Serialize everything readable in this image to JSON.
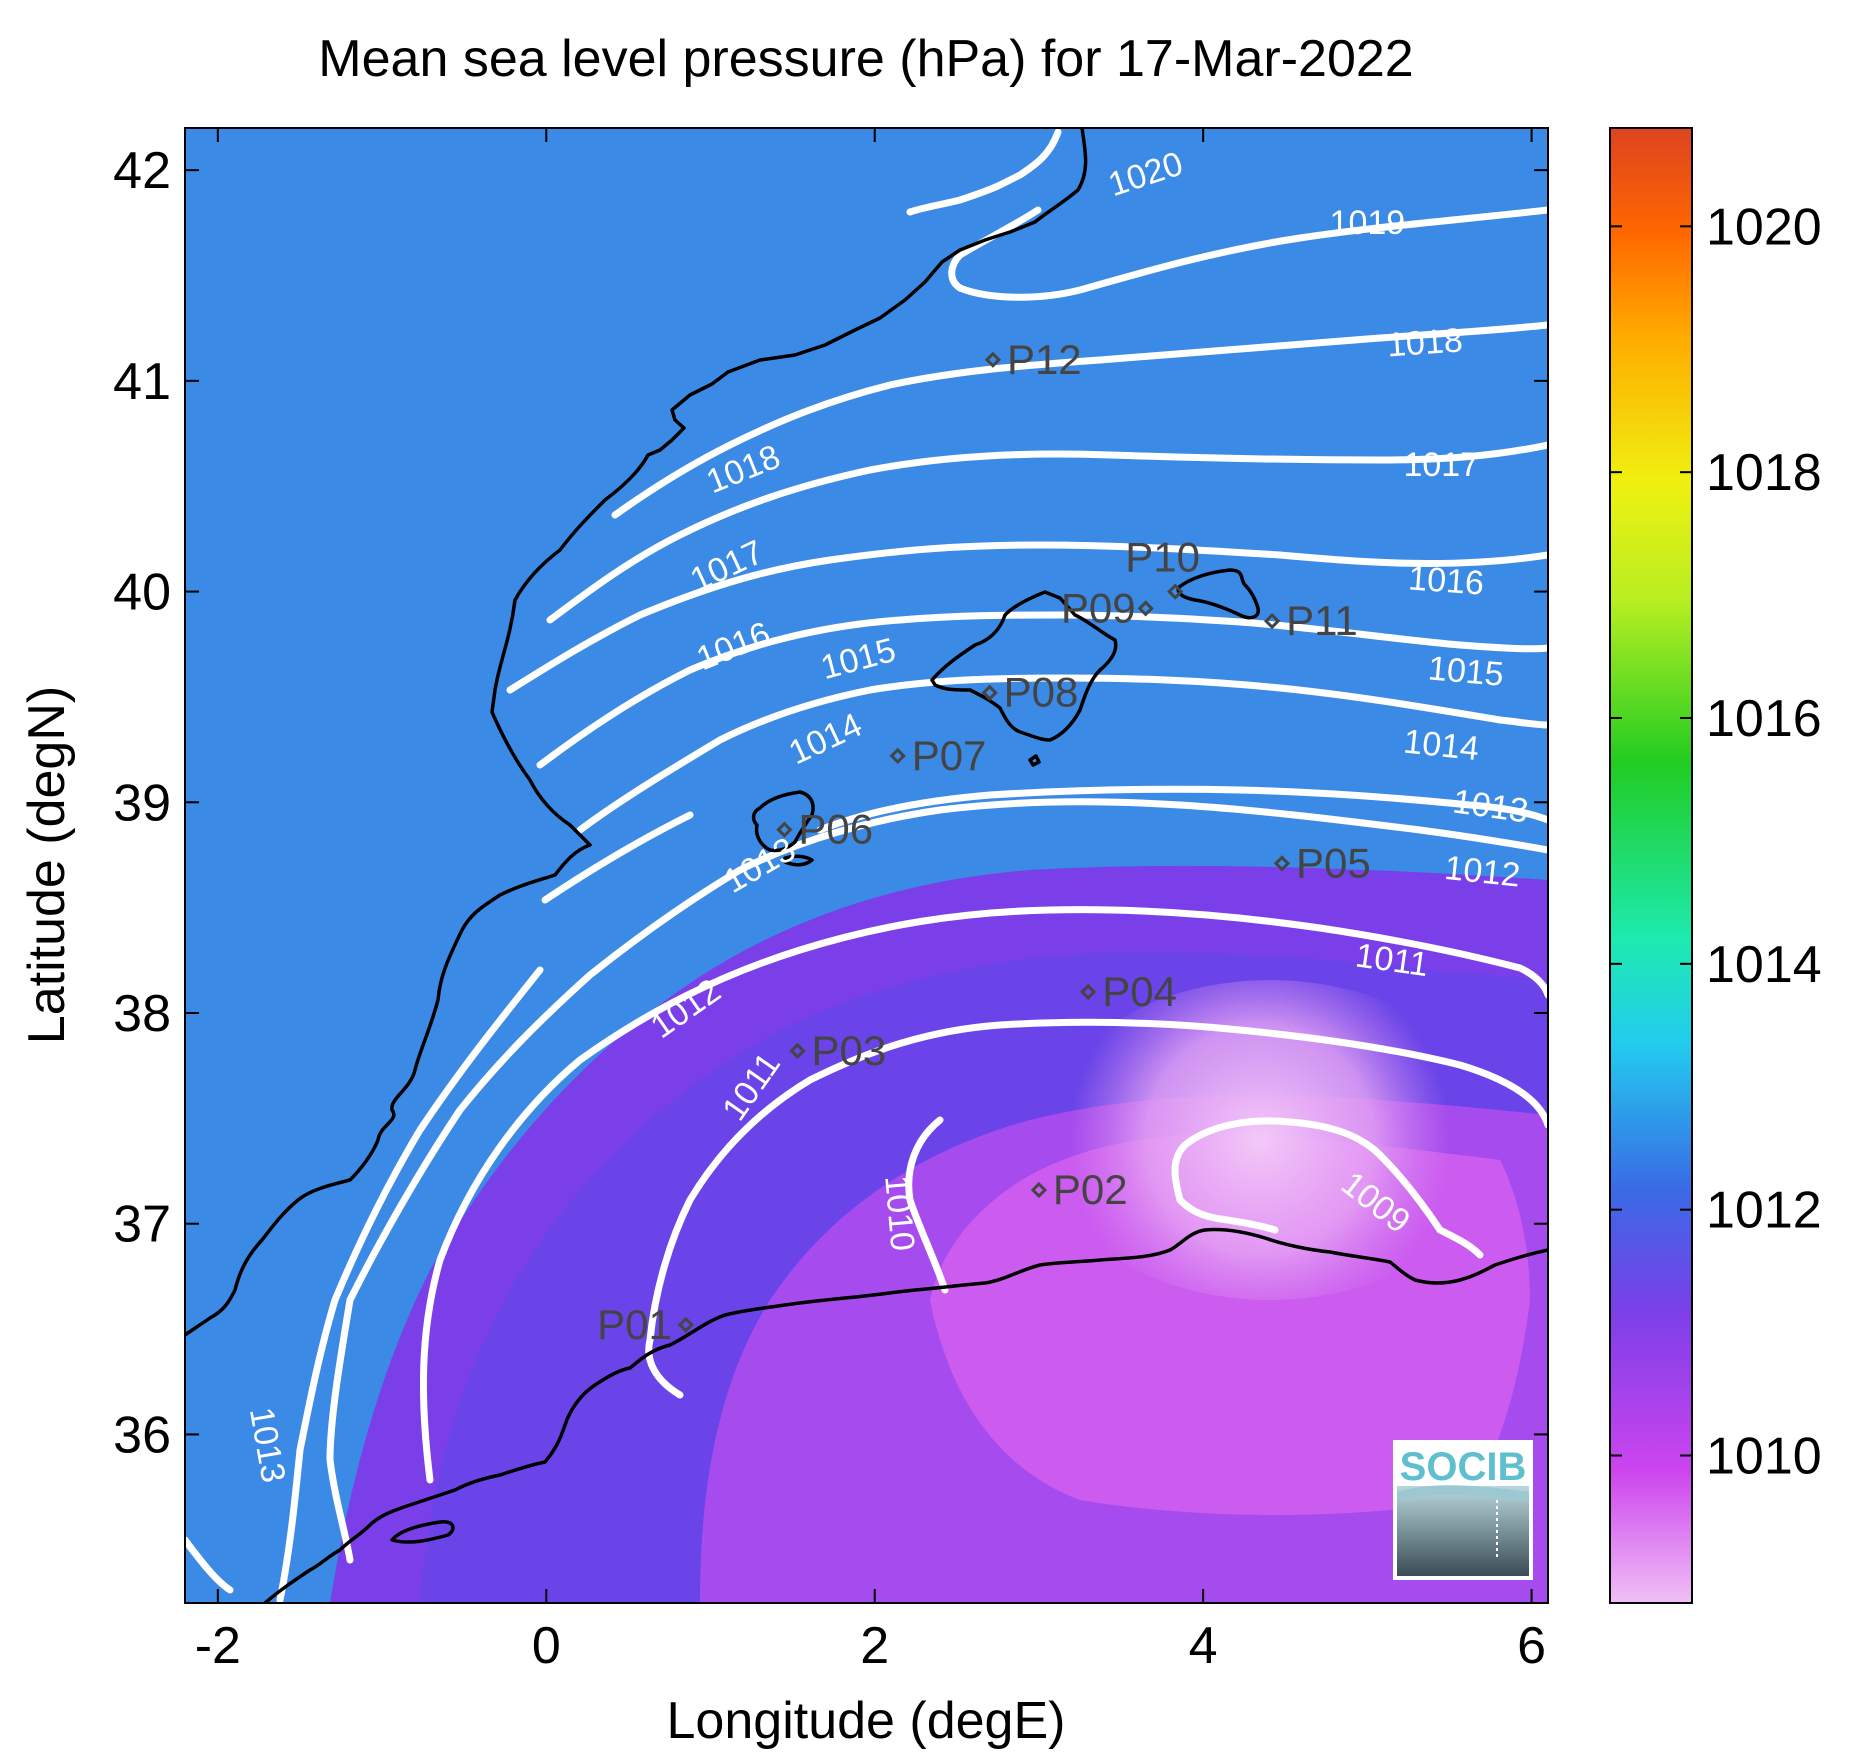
{
  "title": "Mean sea level pressure (hPa) for 17-Mar-2022",
  "xlabel": "Longitude (degE)",
  "ylabel": "Latitude (degN)",
  "logo_text": "SOCIB",
  "colors": {
    "contour": "#ffffff",
    "coast": "#000000",
    "station": "#444444",
    "logo": "#5fbfcf"
  },
  "chart_data": {
    "type": "heatmap",
    "title": "Mean sea level pressure (hPa) for 17-Mar-2022",
    "xlabel": "Longitude (degE)",
    "ylabel": "Latitude (degN)",
    "xlim": [
      -2.2,
      6.1
    ],
    "ylim": [
      35.2,
      42.2
    ],
    "xticks": [
      -2,
      0,
      2,
      4,
      6
    ],
    "yticks": [
      36,
      37,
      38,
      39,
      40,
      41,
      42
    ],
    "colorbar": {
      "range": [
        1008.8,
        1020.8
      ],
      "ticks": [
        1010,
        1012,
        1014,
        1016,
        1018,
        1020
      ],
      "colormap": [
        "#f0c0f5",
        "#cc44ee",
        "#7a3fe8",
        "#3a6ae6",
        "#22ccee",
        "#1deab0",
        "#22cc22",
        "#b8ee22",
        "#f0f010",
        "#ffaa00",
        "#ff6600",
        "#dd4422"
      ]
    },
    "contour_labels": [
      {
        "value": "1020",
        "lon": 3.65,
        "lat": 41.98,
        "angle": -18
      },
      {
        "value": "1019",
        "lon": 5.0,
        "lat": 41.75,
        "angle": 0
      },
      {
        "value": "1018",
        "lon": 1.2,
        "lat": 40.58,
        "angle": -22
      },
      {
        "value": "1018",
        "lon": 5.35,
        "lat": 41.18,
        "angle": -4
      },
      {
        "value": "1017",
        "lon": 1.1,
        "lat": 40.12,
        "angle": -25
      },
      {
        "value": "1017",
        "lon": 5.45,
        "lat": 40.6,
        "angle": 0
      },
      {
        "value": "1016",
        "lon": 1.14,
        "lat": 39.74,
        "angle": -22
      },
      {
        "value": "1016",
        "lon": 5.48,
        "lat": 40.05,
        "angle": 4
      },
      {
        "value": "1015",
        "lon": 1.9,
        "lat": 39.68,
        "angle": -15
      },
      {
        "value": "1015",
        "lon": 5.6,
        "lat": 39.62,
        "angle": 5
      },
      {
        "value": "1014",
        "lon": 1.7,
        "lat": 39.3,
        "angle": -25
      },
      {
        "value": "1014",
        "lon": 5.45,
        "lat": 39.27,
        "angle": 6
      },
      {
        "value": "1013",
        "lon": 5.75,
        "lat": 38.98,
        "angle": 8
      },
      {
        "value": "1013",
        "lon": 1.3,
        "lat": 38.7,
        "angle": -30
      },
      {
        "value": "1013",
        "lon": -1.7,
        "lat": 35.95,
        "angle": 80
      },
      {
        "value": "1012",
        "lon": 5.7,
        "lat": 38.67,
        "angle": 6
      },
      {
        "value": "1012",
        "lon": 0.85,
        "lat": 38.02,
        "angle": -35
      },
      {
        "value": "1011",
        "lon": 1.25,
        "lat": 37.65,
        "angle": -55
      },
      {
        "value": "1011",
        "lon": 5.15,
        "lat": 38.25,
        "angle": 8
      },
      {
        "value": "1010",
        "lon": 2.15,
        "lat": 37.05,
        "angle": 85
      },
      {
        "value": "1009",
        "lon": 5.05,
        "lat": 37.1,
        "angle": 38
      }
    ],
    "stations": [
      {
        "name": "P01",
        "lon": 0.85,
        "lat": 36.52
      },
      {
        "name": "P02",
        "lon": 3.0,
        "lat": 37.16
      },
      {
        "name": "P03",
        "lon": 1.53,
        "lat": 37.82
      },
      {
        "name": "P04",
        "lon": 3.3,
        "lat": 38.1
      },
      {
        "name": "P05",
        "lon": 4.48,
        "lat": 38.71
      },
      {
        "name": "P06",
        "lon": 1.45,
        "lat": 38.87
      },
      {
        "name": "P07",
        "lon": 2.14,
        "lat": 39.22
      },
      {
        "name": "P08",
        "lon": 2.7,
        "lat": 39.52
      },
      {
        "name": "P09",
        "lon": 3.65,
        "lat": 39.92
      },
      {
        "name": "P10",
        "lon": 3.83,
        "lat": 40.0
      },
      {
        "name": "P11",
        "lon": 4.42,
        "lat": 39.86
      },
      {
        "name": "P12",
        "lon": 2.72,
        "lat": 41.1
      }
    ]
  }
}
